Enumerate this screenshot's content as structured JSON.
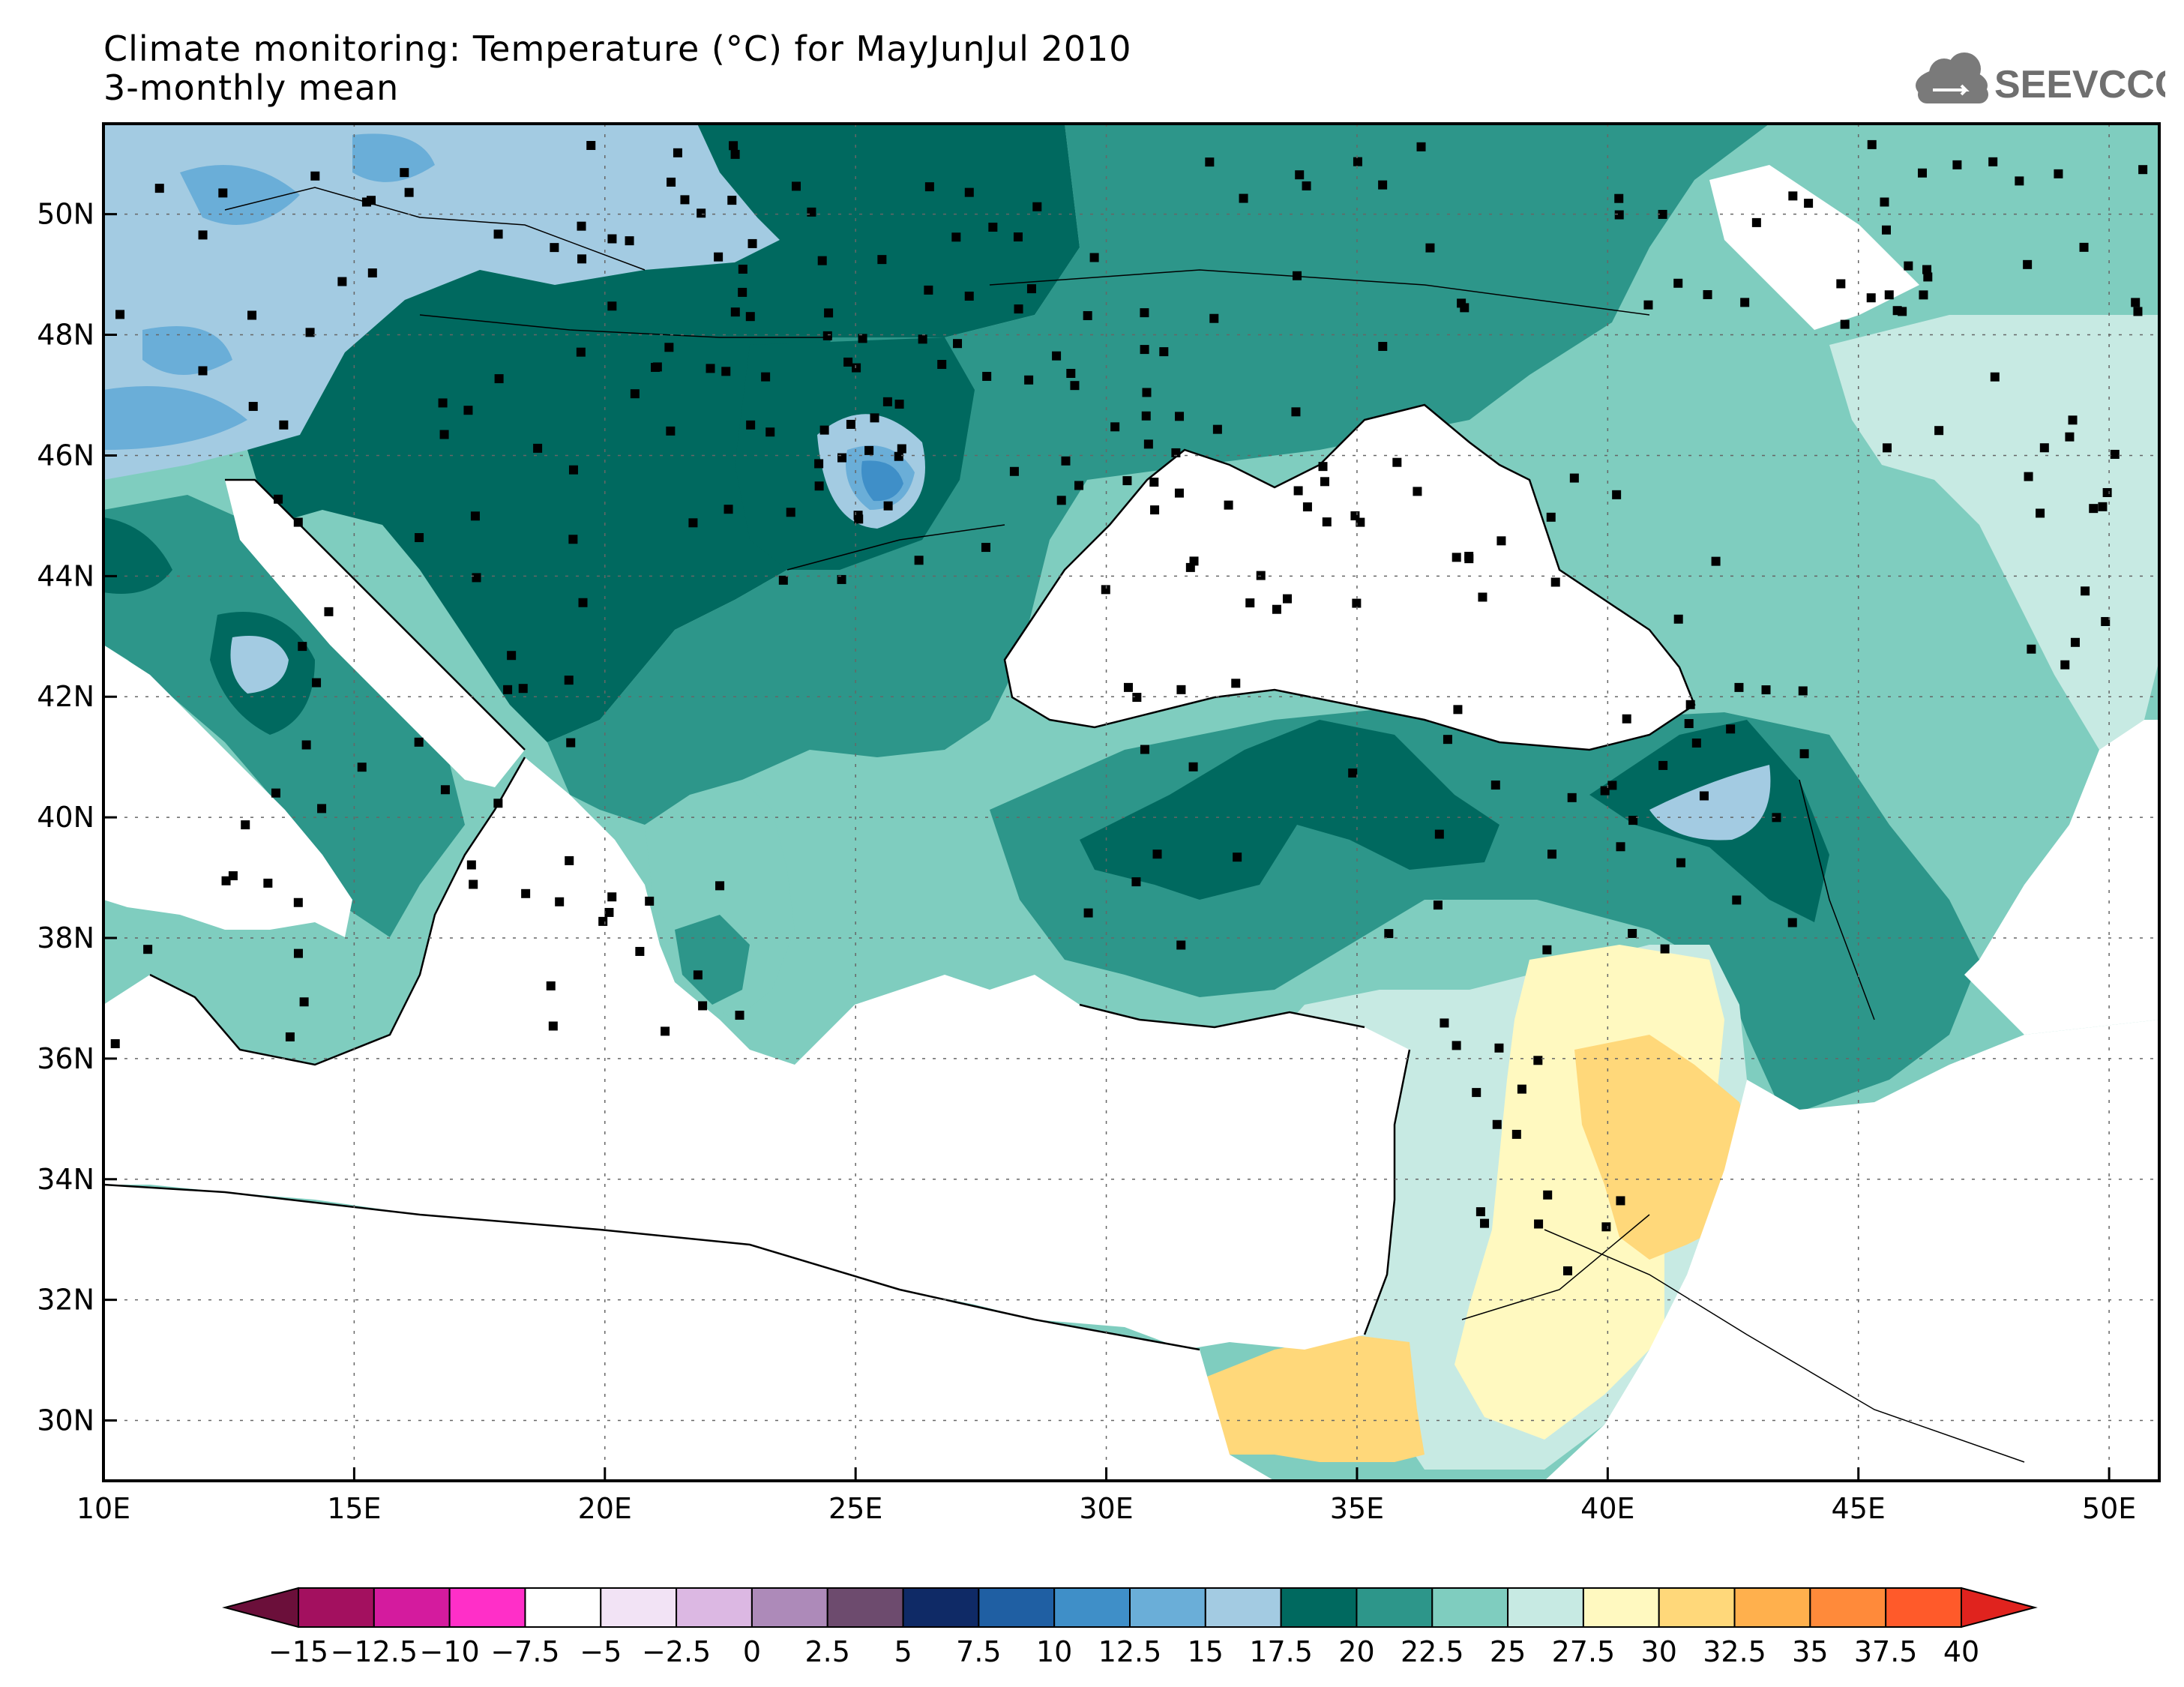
{
  "title": {
    "line1": "Climate monitoring: Temperature (°C) for MayJunJul 2010",
    "line2": "3-monthly mean"
  },
  "logo": {
    "text": "SEEVCCC",
    "icon": "cloud-icon"
  },
  "map": {
    "lon_range": [
      10,
      51
    ],
    "lat_range": [
      29,
      51.5
    ],
    "x_ticks": [
      "10E",
      "15E",
      "20E",
      "25E",
      "30E",
      "35E",
      "40E",
      "45E",
      "50E"
    ],
    "y_ticks": [
      "30N",
      "32N",
      "34N",
      "36N",
      "38N",
      "40N",
      "42N",
      "44N",
      "46N",
      "48N",
      "50N"
    ],
    "grid": "dotted"
  },
  "colorbar": {
    "labels": [
      "-15",
      "-12.5",
      "-10",
      "-7.5",
      "-5",
      "-2.5",
      "0",
      "2.5",
      "5",
      "7.5",
      "10",
      "12.5",
      "15",
      "17.5",
      "20",
      "22.5",
      "25",
      "27.5",
      "30",
      "32.5",
      "35",
      "37.5",
      "40"
    ],
    "colors": [
      "#6b0f3a",
      "#a3105f",
      "#d41b9e",
      "#ff2fc8",
      "#ffffff",
      "#f2e3f5",
      "#dcb8e3",
      "#ad8ab9",
      "#6d4b6e",
      "#0f2a66",
      "#1f5fa3",
      "#3f8fc8",
      "#6aaed8",
      "#a3cbe2",
      "#00695f",
      "#2d968a",
      "#7fcdbf",
      "#c7eae3",
      "#fff9c0",
      "#ffd87a",
      "#ffb04d",
      "#ff8a3a",
      "#ff5a2a",
      "#e0231e"
    ],
    "under_color": "#6b0f3a",
    "over_color": "#e0231e"
  }
}
